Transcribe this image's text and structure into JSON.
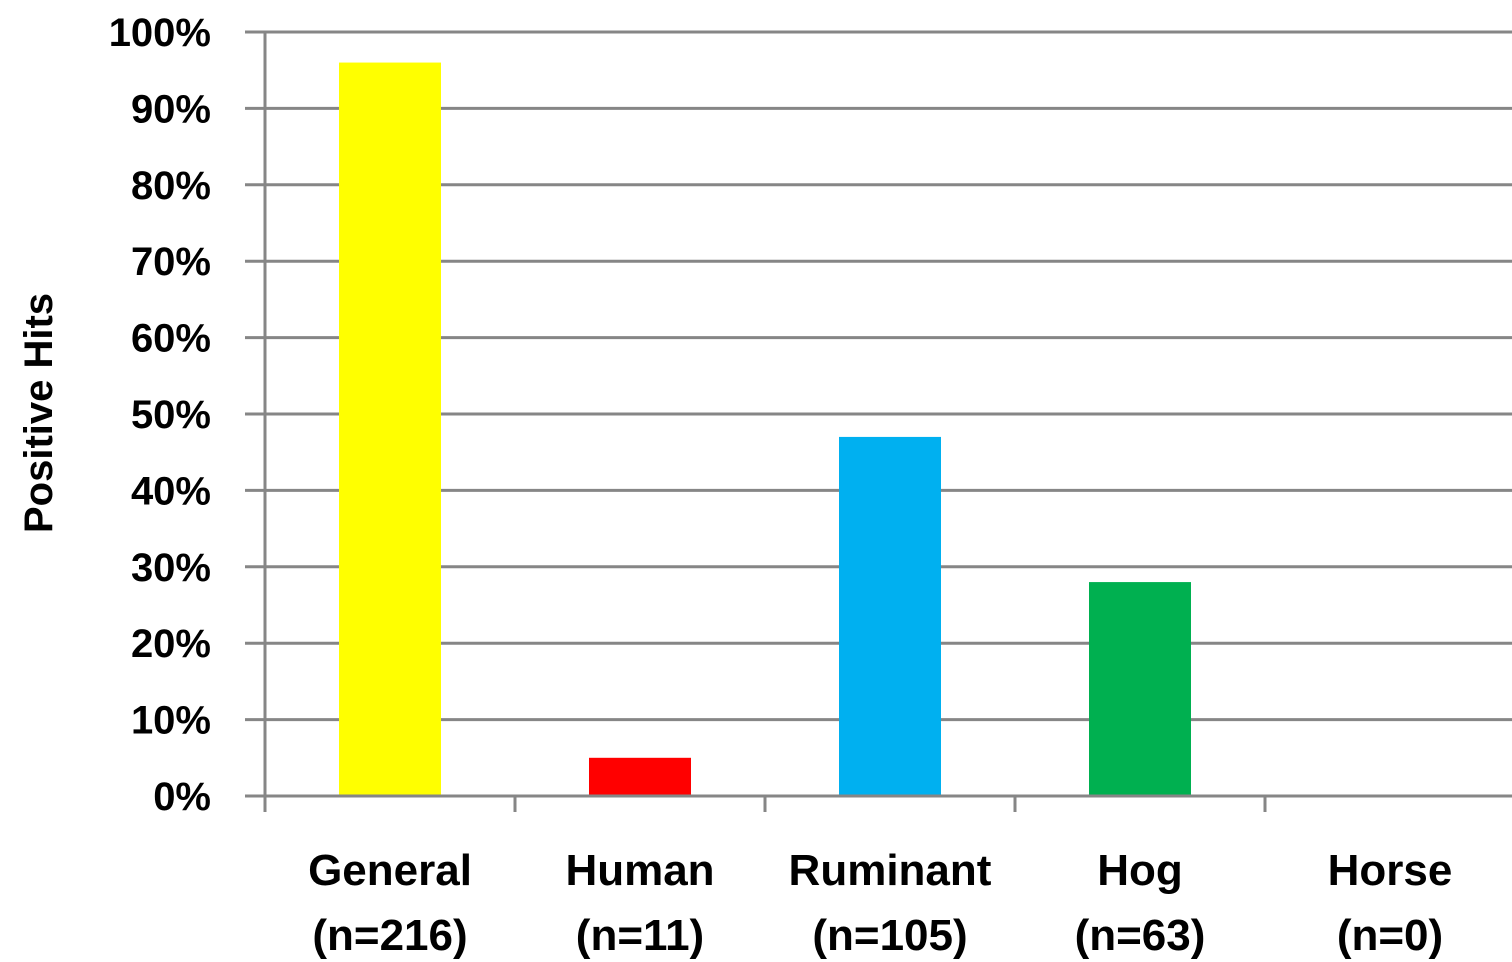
{
  "chart_data": {
    "type": "bar",
    "title": "",
    "xlabel": "",
    "ylabel": "Positive Hits",
    "ylim": [
      0,
      100
    ],
    "y_unit": "%",
    "yticks": [
      "0%",
      "10%",
      "20%",
      "30%",
      "40%",
      "50%",
      "60%",
      "70%",
      "80%",
      "90%",
      "100%"
    ],
    "grid": "horizontal",
    "legend": "none",
    "categories": [
      {
        "name": "General",
        "n": "(n=216)"
      },
      {
        "name": "Human",
        "n": "(n=11)"
      },
      {
        "name": "Ruminant",
        "n": "(n=105)"
      },
      {
        "name": "Hog",
        "n": "(n=63)"
      },
      {
        "name": "Horse",
        "n": "(n=0)"
      }
    ],
    "values": [
      96,
      5,
      47,
      28,
      0
    ],
    "colors": [
      "#ffff00",
      "#ff0000",
      "#00b0f0",
      "#00b050",
      "#ffffff"
    ]
  }
}
